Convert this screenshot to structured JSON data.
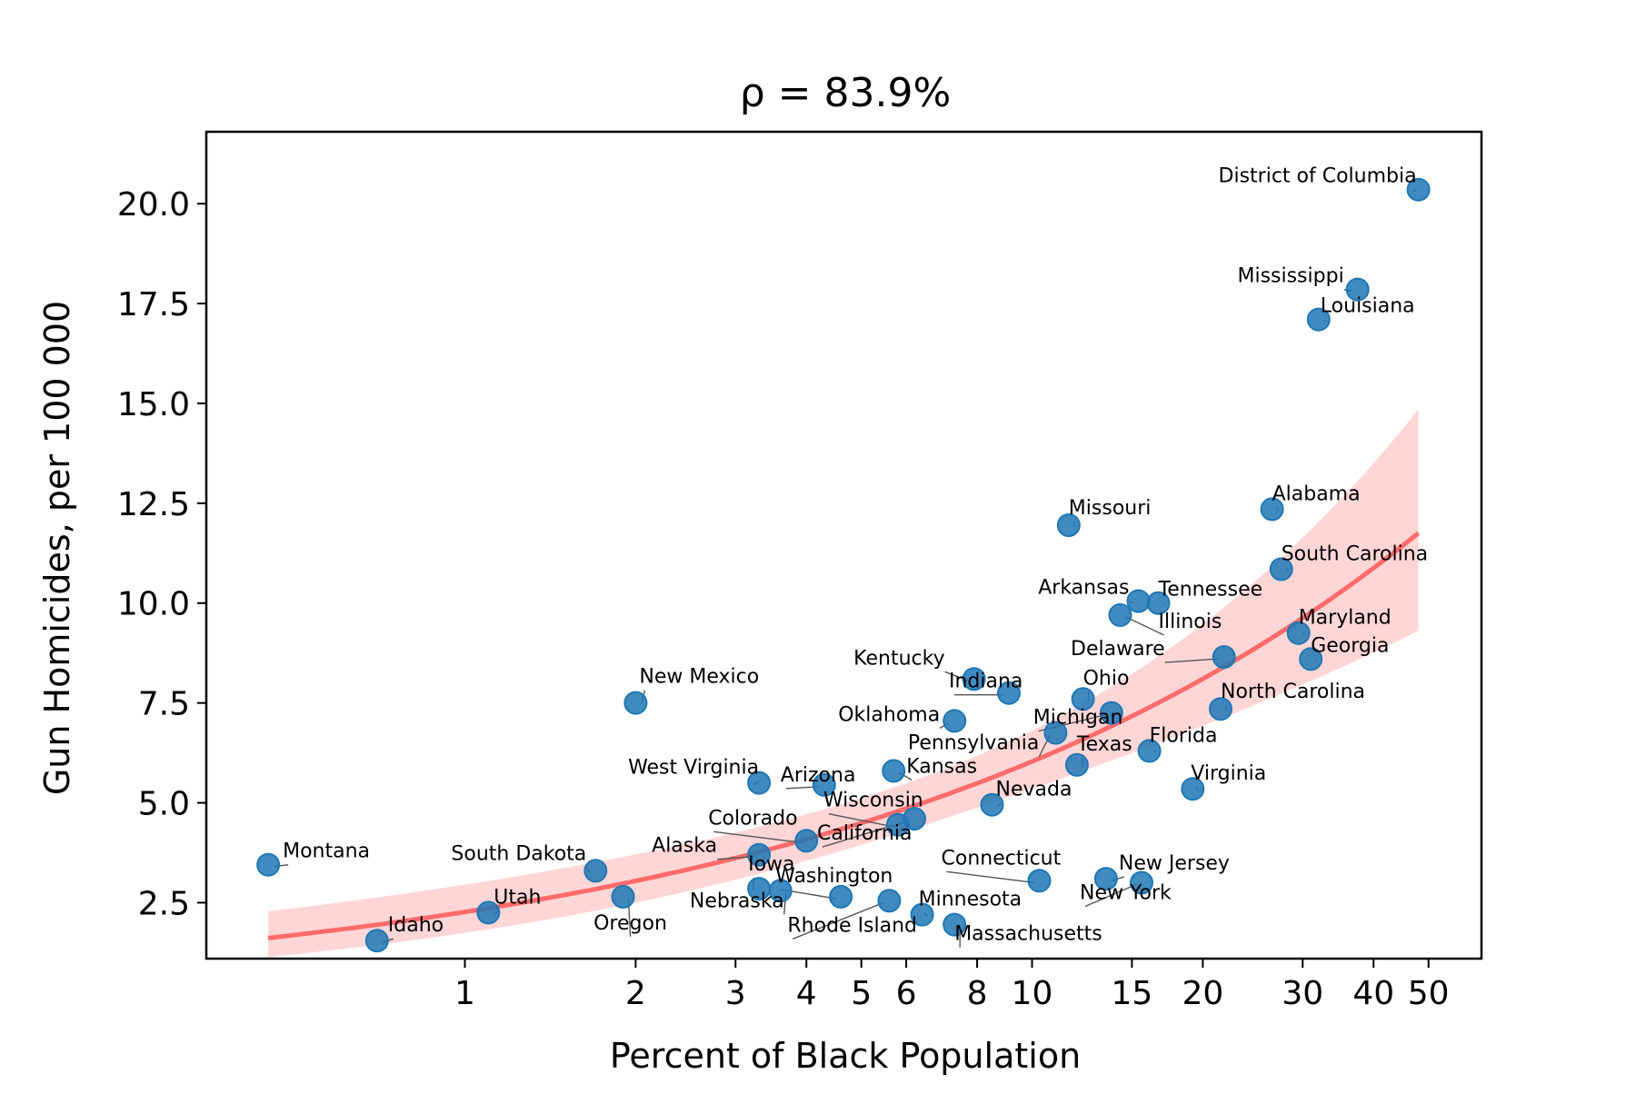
{
  "chart_data": {
    "type": "scatter",
    "title": "ρ = 83.9%",
    "xlabel": "Percent of Black Population",
    "ylabel": "Gun Homicides, per 100 000",
    "xscale": "log",
    "xlim": [
      0.35,
      62
    ],
    "ylim": [
      1.1,
      21.8
    ],
    "xticks": [
      {
        "value": 1,
        "label": "1"
      },
      {
        "value": 2,
        "label": "2"
      },
      {
        "value": 3,
        "label": "3"
      },
      {
        "value": 4,
        "label": "4"
      },
      {
        "value": 5,
        "label": "5"
      },
      {
        "value": 6,
        "label": "6"
      },
      {
        "value": 8,
        "label": "8"
      },
      {
        "value": 10,
        "label": "10"
      },
      {
        "value": 15,
        "label": "15"
      },
      {
        "value": 20,
        "label": "20"
      },
      {
        "value": 30,
        "label": "30"
      },
      {
        "value": 40,
        "label": "40"
      },
      {
        "value": 50,
        "label": "50"
      }
    ],
    "yticks": [
      {
        "value": 2.5,
        "label": "2.5"
      },
      {
        "value": 5.0,
        "label": "5.0"
      },
      {
        "value": 7.5,
        "label": "7.5"
      },
      {
        "value": 10.0,
        "label": "10.0"
      },
      {
        "value": 12.5,
        "label": "12.5"
      },
      {
        "value": 15.0,
        "label": "15.0"
      },
      {
        "value": 17.5,
        "label": "17.5"
      },
      {
        "value": 20.0,
        "label": "20.0"
      }
    ],
    "grid": false,
    "point_color": "#1f77b4",
    "fit_color": "#ff6b6b",
    "band_color": "#ffd6d6",
    "points": [
      {
        "label": "Montana",
        "x": 0.45,
        "y": 3.45
      },
      {
        "label": "Idaho",
        "x": 0.7,
        "y": 1.55
      },
      {
        "label": "Utah",
        "x": 1.1,
        "y": 2.25
      },
      {
        "label": "South Dakota",
        "x": 1.7,
        "y": 3.3
      },
      {
        "label": "Oregon",
        "x": 1.9,
        "y": 2.65
      },
      {
        "label": "New Mexico",
        "x": 2.0,
        "y": 7.5
      },
      {
        "label": "West Virginia",
        "x": 3.3,
        "y": 5.5
      },
      {
        "label": "Alaska",
        "x": 3.3,
        "y": 3.7
      },
      {
        "label": "Iowa",
        "x": 3.3,
        "y": 2.85
      },
      {
        "label": "Nebraska",
        "x": 3.6,
        "y": 2.8
      },
      {
        "label": "Colorado",
        "x": 4.0,
        "y": 4.05
      },
      {
        "label": "Arizona",
        "x": 4.3,
        "y": 5.45
      },
      {
        "label": "Washington",
        "x": 4.6,
        "y": 2.65
      },
      {
        "label": "Rhode Island",
        "x": 5.6,
        "y": 2.55
      },
      {
        "label": "Kansas",
        "x": 5.7,
        "y": 5.8
      },
      {
        "label": "Wisconsin",
        "x": 5.8,
        "y": 4.45
      },
      {
        "label": "California",
        "x": 6.2,
        "y": 4.6
      },
      {
        "label": "Minnesota",
        "x": 6.4,
        "y": 2.2
      },
      {
        "label": "Massachusetts",
        "x": 7.3,
        "y": 1.95
      },
      {
        "label": "Oklahoma",
        "x": 7.3,
        "y": 7.05
      },
      {
        "label": "Kentucky",
        "x": 7.9,
        "y": 8.1
      },
      {
        "label": "Indiana",
        "x": 9.1,
        "y": 7.75
      },
      {
        "label": "Nevada",
        "x": 8.5,
        "y": 4.95
      },
      {
        "label": "Connecticut",
        "x": 10.3,
        "y": 3.05
      },
      {
        "label": "Pennsylvania",
        "x": 11.0,
        "y": 6.75
      },
      {
        "label": "Missouri",
        "x": 11.6,
        "y": 11.95
      },
      {
        "label": "Texas",
        "x": 12.0,
        "y": 5.95
      },
      {
        "label": "Ohio",
        "x": 12.3,
        "y": 7.6
      },
      {
        "label": "Michigan",
        "x": 13.8,
        "y": 7.25
      },
      {
        "label": "New Jersey",
        "x": 13.5,
        "y": 3.1
      },
      {
        "label": "Illinois",
        "x": 14.3,
        "y": 9.7
      },
      {
        "label": "Arkansas",
        "x": 15.4,
        "y": 10.05
      },
      {
        "label": "New York",
        "x": 15.6,
        "y": 3.0
      },
      {
        "label": "Tennessee",
        "x": 16.7,
        "y": 10.0
      },
      {
        "label": "Florida",
        "x": 16.1,
        "y": 6.3
      },
      {
        "label": "Virginia",
        "x": 19.2,
        "y": 5.35
      },
      {
        "label": "North Carolina",
        "x": 21.5,
        "y": 7.35
      },
      {
        "label": "Delaware",
        "x": 21.8,
        "y": 8.65
      },
      {
        "label": "Alabama",
        "x": 26.5,
        "y": 12.35
      },
      {
        "label": "South Carolina",
        "x": 27.5,
        "y": 10.85
      },
      {
        "label": "Maryland",
        "x": 29.5,
        "y": 9.25
      },
      {
        "label": "Georgia",
        "x": 31.0,
        "y": 8.6
      },
      {
        "label": "Louisiana",
        "x": 32.0,
        "y": 17.1
      },
      {
        "label": "Mississippi",
        "x": 37.5,
        "y": 17.85
      },
      {
        "label": "District of Columbia",
        "x": 48.0,
        "y": 20.35
      }
    ]
  }
}
